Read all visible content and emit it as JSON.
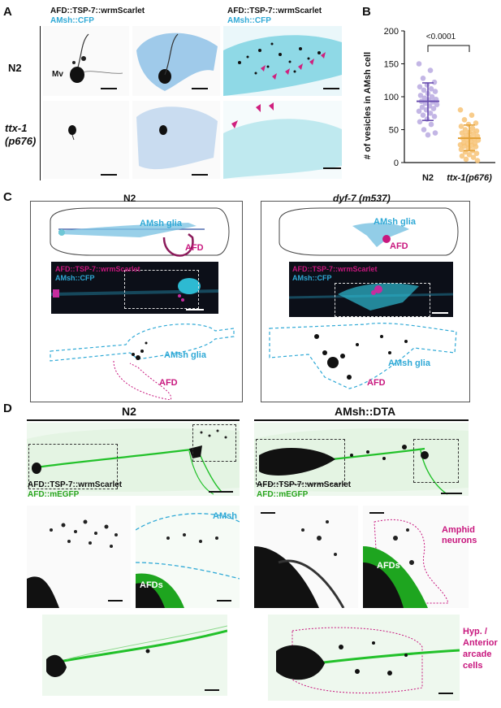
{
  "panel_letters": {
    "a": "A",
    "b": "B",
    "c": "C",
    "d": "D"
  },
  "panel_a": {
    "rows": [
      {
        "label": "N2",
        "italic": false
      },
      {
        "label": "ttx-1\n(p676)",
        "italic": true
      }
    ],
    "col1_title": "AFD::TSP-7::wrmScarlet",
    "col1_title_2": "AMsh::CFP",
    "col3_title": "AFD::TSP-7::wrmScarlet",
    "col3_title_2": "AMsh::CFP",
    "mv_label": "Mv"
  },
  "chart_data": {
    "type": "scatter",
    "ylabel": "# of vesicles in AMsh cell",
    "ylim": [
      0,
      200
    ],
    "yticks": [
      0,
      50,
      100,
      150,
      200
    ],
    "categories": [
      "N2",
      "ttx-1(p676)"
    ],
    "significance": "<0.0001",
    "colors": {
      "N2": "#b9a9e0",
      "ttx-1(p676)": "#f7c377",
      "N2_bar": "#6a4fb0",
      "ttx_bar": "#e3a23a"
    },
    "series": [
      {
        "name": "N2",
        "mean": 93,
        "sd_low": 64,
        "sd_high": 121,
        "values": [
          150,
          140,
          128,
          122,
          118,
          115,
          112,
          110,
          108,
          105,
          102,
          100,
          98,
          96,
          95,
          93,
          92,
          90,
          88,
          86,
          84,
          82,
          80,
          78,
          75,
          72,
          70,
          66,
          62,
          58,
          50,
          45,
          42
        ]
      },
      {
        "name": "ttx-1(p676)",
        "mean": 37,
        "sd_low": 18,
        "sd_high": 57,
        "values": [
          80,
          72,
          65,
          60,
          58,
          55,
          52,
          50,
          48,
          46,
          45,
          44,
          42,
          40,
          38,
          37,
          36,
          35,
          34,
          32,
          30,
          29,
          28,
          27,
          26,
          25,
          24,
          22,
          20,
          18,
          16,
          14,
          12,
          10,
          8,
          5,
          3
        ]
      }
    ]
  },
  "panel_c": {
    "left_title": "N2",
    "right_title": "dyf-7 (m537)",
    "amsh_glia": "AMsh glia",
    "afd": "AFD",
    "inset_line1": "AFD::TSP-7::wrmScarlet",
    "inset_line2": "AMsh::CFP"
  },
  "panel_d": {
    "left_title": "N2",
    "right_title": "AMsh::DTA",
    "legend_line1": "AFD::TSP-7::wrmScarlet",
    "legend_line2": "AFD::mEGFP",
    "amsh": "AMsh",
    "afds": "AFDs",
    "amphid": "Amphid\nneurons",
    "hyp": "Hyp. /\nAnterior\narcade\ncells"
  }
}
